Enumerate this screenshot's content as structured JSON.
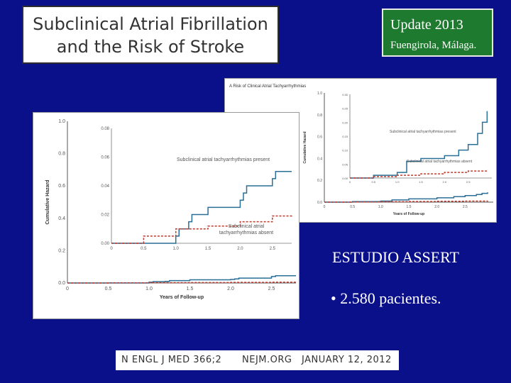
{
  "title": {
    "line1": "Subclinical Atrial Fibrillation",
    "line2": "and the Risk of Stroke"
  },
  "update": {
    "line1": "Update  2013",
    "line2": "Fuengirola, Málaga."
  },
  "study": {
    "name": "ESTUDIO ASSERT",
    "bullet": "• 2.580 pacientes."
  },
  "footer": {
    "journal": "N ENGL J MED 366;2",
    "site": "NEJM.ORG",
    "date": "JANUARY 12, 2012"
  },
  "colors": {
    "present": "#2a6f97",
    "absent": "#c0392b"
  },
  "chart_data": [
    {
      "type": "line",
      "title": "A  Risk of Clinical Atrial Tachyarrhythmias",
      "xlabel": "Years of Follow-up",
      "ylabel": "Cumulative Hazard",
      "xlim": [
        0,
        3
      ],
      "ylim": [
        0,
        1.0
      ],
      "xticks": [
        "0",
        "0.5",
        "1.0",
        "1.5",
        "2.0",
        "2.5"
      ],
      "yticks": [
        "0.0",
        "0.2",
        "0.4",
        "0.6",
        "0.8",
        "1.0"
      ],
      "inset": {
        "ylim": [
          0,
          0.3
        ],
        "yticks": [
          "0.00",
          "0.05",
          "0.10",
          "0.15",
          "0.20",
          "0.25",
          "0.30"
        ]
      },
      "series": [
        {
          "name": "Subclinical atrial tachyarrhythmias present",
          "x": [
            0,
            0.5,
            1.0,
            1.2,
            1.5,
            2.0,
            2.3,
            2.5,
            2.7,
            2.8,
            2.9
          ],
          "y": [
            0,
            0.01,
            0.02,
            0.06,
            0.07,
            0.08,
            0.1,
            0.12,
            0.16,
            0.2,
            0.24
          ],
          "main_y": [
            0,
            0.005,
            0.01,
            0.02,
            0.03,
            0.04,
            0.05,
            0.06,
            0.07,
            0.08,
            0.09
          ]
        },
        {
          "name": "Subclinical atrial tachyarrhythmias absent",
          "x": [
            0,
            0.5,
            1.0,
            1.5,
            2.0,
            2.5,
            2.9
          ],
          "y": [
            0,
            0.005,
            0.01,
            0.015,
            0.02,
            0.025,
            0.03
          ],
          "main_y": [
            0,
            0.002,
            0.004,
            0.006,
            0.008,
            0.01,
            0.012
          ]
        }
      ]
    },
    {
      "type": "line",
      "title": "",
      "xlabel": "Years of Follow-up",
      "ylabel": "Cumulative Hazard",
      "xlim": [
        0,
        2.8
      ],
      "ylim": [
        0,
        1.0
      ],
      "xticks": [
        "0",
        "0.5",
        "1.0",
        "1.5",
        "2.0",
        "2.5"
      ],
      "yticks": [
        "0.0",
        "0.2",
        "0.4",
        "0.6",
        "0.8",
        "1.0"
      ],
      "inset": {
        "ylim": [
          0,
          0.08
        ],
        "yticks": [
          "0.00",
          "0.02",
          "0.04",
          "0.06",
          "0.08"
        ]
      },
      "series": [
        {
          "name": "Subclinical atrial tachyarrhythmias present",
          "x": [
            0,
            0.9,
            1.0,
            1.05,
            1.2,
            1.25,
            1.5,
            2.0,
            2.05,
            2.1,
            2.5,
            2.55,
            2.8
          ],
          "y": [
            0,
            0,
            0.005,
            0.01,
            0.015,
            0.02,
            0.025,
            0.03,
            0.035,
            0.04,
            0.045,
            0.05,
            0.05
          ],
          "main_y": [
            0,
            0,
            0.005,
            0.008,
            0.01,
            0.015,
            0.02,
            0.022,
            0.025,
            0.03,
            0.04,
            0.045,
            0.045
          ]
        },
        {
          "name": "Subclinical atrial tachyarrhythmias absent",
          "x": [
            0,
            0.5,
            1.0,
            1.5,
            2.0,
            2.5,
            2.8
          ],
          "y": [
            0,
            0.005,
            0.01,
            0.012,
            0.015,
            0.019,
            0.02
          ],
          "main_y": [
            0,
            0.001,
            0.002,
            0.003,
            0.004,
            0.005,
            0.006
          ]
        }
      ]
    }
  ]
}
